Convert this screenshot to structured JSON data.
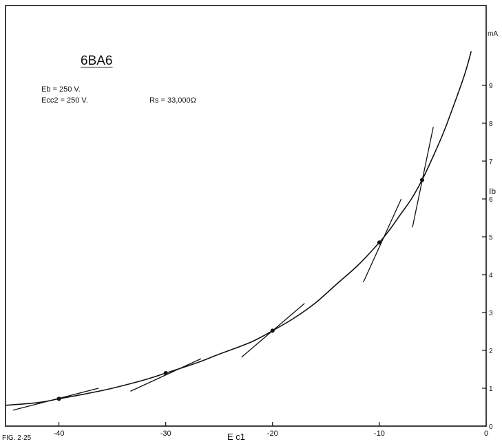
{
  "chart_data": {
    "type": "line",
    "title": "6BA6",
    "xlabel": "E c1",
    "ylabel": "Ib",
    "y_unit": "mA",
    "figure_label": "FIG. 2·25",
    "parameters": [
      "Eb = 250 V.",
      "Ecc2 = 250 V.",
      "Rs = 33,000Ω"
    ],
    "xlim": [
      -45,
      0
    ],
    "ylim": [
      0,
      9.9
    ],
    "x_ticks": [
      -40,
      -30,
      -20,
      -10,
      0
    ],
    "x_tick_labels": [
      "-40",
      "-30",
      "-20",
      "-10",
      "0"
    ],
    "y_ticks": [
      0,
      1,
      2,
      3,
      4,
      5,
      6,
      7,
      8,
      9
    ],
    "y_tick_labels": [
      "0",
      "1",
      "2",
      "3",
      "4",
      "5",
      "6",
      "7",
      "8",
      "9"
    ],
    "grid": false,
    "series": [
      {
        "x": [
          -45,
          -42,
          -40,
          -37,
          -35,
          -32,
          -30,
          -27,
          -25,
          -22,
          -20,
          -18,
          -16,
          -14,
          -12,
          -10,
          -9,
          -8,
          -7,
          -6,
          -5,
          -4,
          -3,
          -2,
          -1.4
        ],
        "y": [
          0.55,
          0.62,
          0.72,
          0.88,
          1.0,
          1.22,
          1.4,
          1.68,
          1.9,
          2.22,
          2.52,
          2.85,
          3.25,
          3.75,
          4.25,
          4.85,
          5.2,
          5.6,
          6.0,
          6.5,
          7.1,
          7.75,
          8.5,
          9.3,
          9.9
        ]
      }
    ],
    "tangent_points": [
      {
        "x": -40,
        "y": 0.72
      },
      {
        "x": -30,
        "y": 1.4
      },
      {
        "x": -20,
        "y": 2.52
      },
      {
        "x": -10,
        "y": 4.85
      },
      {
        "x": -6,
        "y": 6.5
      }
    ],
    "tangent_lines": [
      {
        "x": [
          -44.3,
          -36.3
        ],
        "y": [
          0.42,
          1.0
        ]
      },
      {
        "x": [
          -33.3,
          -26.7
        ],
        "y": [
          0.92,
          1.78
        ]
      },
      {
        "x": [
          -22.9,
          -17.0
        ],
        "y": [
          1.82,
          3.24
        ]
      },
      {
        "x": [
          -11.5,
          -7.95
        ],
        "y": [
          3.8,
          6.0
        ]
      },
      {
        "x": [
          -6.9,
          -4.95
        ],
        "y": [
          5.25,
          7.9
        ]
      }
    ]
  }
}
